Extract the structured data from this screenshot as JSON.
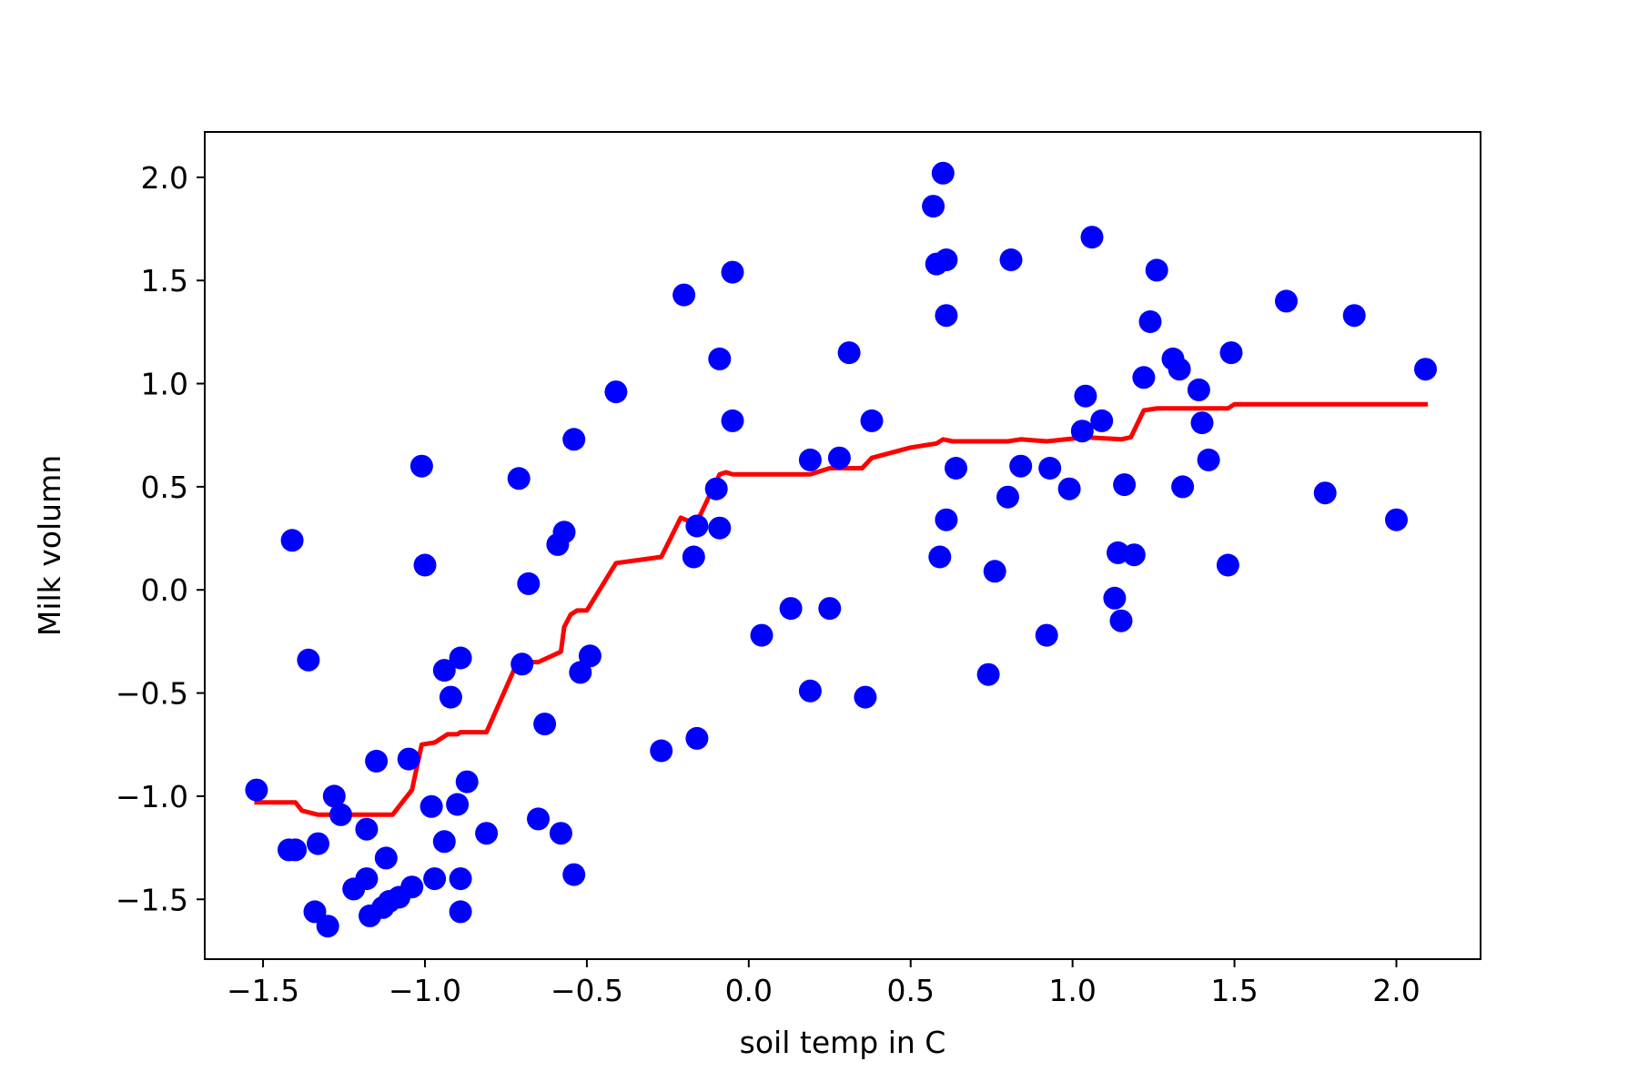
{
  "chart_data": {
    "type": "scatter",
    "title": "",
    "xlabel": "soil temp in C",
    "ylabel": "Milk volumn",
    "xlim": [
      -1.68,
      2.26
    ],
    "ylim": [
      -1.79,
      2.22
    ],
    "grid": false,
    "x_ticks": [
      {
        "value": -1.5,
        "label": "−1.5"
      },
      {
        "value": -1.0,
        "label": "−1.0"
      },
      {
        "value": -0.5,
        "label": "−0.5"
      },
      {
        "value": 0.0,
        "label": "0.0"
      },
      {
        "value": 0.5,
        "label": "0.5"
      },
      {
        "value": 1.0,
        "label": "1.0"
      },
      {
        "value": 1.5,
        "label": "1.5"
      },
      {
        "value": 2.0,
        "label": "2.0"
      }
    ],
    "y_ticks": [
      {
        "value": -1.5,
        "label": "−1.5"
      },
      {
        "value": -1.0,
        "label": "−1.0"
      },
      {
        "value": -0.5,
        "label": "−0.5"
      },
      {
        "value": 0.0,
        "label": "0.0"
      },
      {
        "value": 0.5,
        "label": "0.5"
      },
      {
        "value": 1.0,
        "label": "1.0"
      },
      {
        "value": 1.5,
        "label": "1.5"
      },
      {
        "value": 2.0,
        "label": "2.0"
      }
    ],
    "scatter_color": "#0000ff",
    "line_color": "#ff0000",
    "scatter": {
      "points": [
        [
          -1.52,
          -0.97
        ],
        [
          -1.42,
          -1.26
        ],
        [
          -1.41,
          0.24
        ],
        [
          -1.4,
          -1.26
        ],
        [
          -1.36,
          -0.34
        ],
        [
          -1.34,
          -1.56
        ],
        [
          -1.33,
          -1.23
        ],
        [
          -1.3,
          -1.63
        ],
        [
          -1.28,
          -1.0
        ],
        [
          -1.26,
          -1.09
        ],
        [
          -1.22,
          -1.45
        ],
        [
          -1.18,
          -1.4
        ],
        [
          -1.18,
          -1.16
        ],
        [
          -1.17,
          -1.58
        ],
        [
          -1.15,
          -0.83
        ],
        [
          -1.13,
          -1.54
        ],
        [
          -1.12,
          -1.3
        ],
        [
          -1.11,
          -1.51
        ],
        [
          -1.08,
          -1.49
        ],
        [
          -1.05,
          -0.82
        ],
        [
          -1.04,
          -1.44
        ],
        [
          -1.01,
          0.6
        ],
        [
          -1.0,
          0.12
        ],
        [
          -0.98,
          -1.05
        ],
        [
          -0.97,
          -1.4
        ],
        [
          -0.94,
          -1.22
        ],
        [
          -0.94,
          -0.39
        ],
        [
          -0.92,
          -0.52
        ],
        [
          -0.9,
          -1.04
        ],
        [
          -0.89,
          -1.4
        ],
        [
          -0.89,
          -0.33
        ],
        [
          -0.89,
          -1.56
        ],
        [
          -0.87,
          -0.93
        ],
        [
          -0.81,
          -1.18
        ],
        [
          -0.71,
          0.54
        ],
        [
          -0.7,
          -0.36
        ],
        [
          -0.68,
          0.03
        ],
        [
          -0.65,
          -1.11
        ],
        [
          -0.63,
          -0.65
        ],
        [
          -0.59,
          0.22
        ],
        [
          -0.58,
          -1.18
        ],
        [
          -0.57,
          0.28
        ],
        [
          -0.54,
          -1.38
        ],
        [
          -0.54,
          0.73
        ],
        [
          -0.52,
          -0.4
        ],
        [
          -0.49,
          -0.32
        ],
        [
          -0.41,
          0.96
        ],
        [
          -0.27,
          -0.78
        ],
        [
          -0.2,
          1.43
        ],
        [
          -0.17,
          0.16
        ],
        [
          -0.16,
          -0.72
        ],
        [
          -0.16,
          0.31
        ],
        [
          -0.1,
          0.49
        ],
        [
          -0.09,
          0.3
        ],
        [
          -0.09,
          1.12
        ],
        [
          -0.05,
          0.82
        ],
        [
          -0.05,
          1.54
        ],
        [
          0.04,
          -0.22
        ],
        [
          0.13,
          -0.09
        ],
        [
          0.19,
          0.63
        ],
        [
          0.19,
          -0.49
        ],
        [
          0.25,
          -0.09
        ],
        [
          0.28,
          0.64
        ],
        [
          0.31,
          1.15
        ],
        [
          0.36,
          -0.52
        ],
        [
          0.38,
          0.82
        ],
        [
          0.57,
          1.86
        ],
        [
          0.58,
          1.58
        ],
        [
          0.59,
          0.16
        ],
        [
          0.6,
          2.02
        ],
        [
          0.61,
          1.6
        ],
        [
          0.61,
          1.33
        ],
        [
          0.61,
          0.34
        ],
        [
          0.64,
          0.59
        ],
        [
          0.74,
          -0.41
        ],
        [
          0.76,
          0.09
        ],
        [
          0.8,
          0.45
        ],
        [
          0.81,
          1.6
        ],
        [
          0.84,
          0.6
        ],
        [
          0.92,
          -0.22
        ],
        [
          0.93,
          0.59
        ],
        [
          0.99,
          0.49
        ],
        [
          1.03,
          0.77
        ],
        [
          1.04,
          0.94
        ],
        [
          1.06,
          1.71
        ],
        [
          1.09,
          0.82
        ],
        [
          1.13,
          -0.04
        ],
        [
          1.14,
          0.18
        ],
        [
          1.15,
          -0.15
        ],
        [
          1.16,
          0.51
        ],
        [
          1.19,
          0.17
        ],
        [
          1.22,
          1.03
        ],
        [
          1.24,
          1.3
        ],
        [
          1.26,
          1.55
        ],
        [
          1.31,
          1.12
        ],
        [
          1.33,
          1.07
        ],
        [
          1.34,
          0.5
        ],
        [
          1.39,
          0.97
        ],
        [
          1.4,
          0.81
        ],
        [
          1.42,
          0.63
        ],
        [
          1.48,
          0.12
        ],
        [
          1.49,
          1.15
        ],
        [
          1.66,
          1.4
        ],
        [
          1.78,
          0.47
        ],
        [
          1.87,
          1.33
        ],
        [
          2.0,
          0.34
        ],
        [
          2.09,
          1.07
        ]
      ]
    },
    "line": {
      "points": [
        [
          -1.52,
          -1.03
        ],
        [
          -1.4,
          -1.03
        ],
        [
          -1.38,
          -1.07
        ],
        [
          -1.33,
          -1.09
        ],
        [
          -1.1,
          -1.09
        ],
        [
          -1.04,
          -0.97
        ],
        [
          -1.01,
          -0.75
        ],
        [
          -0.97,
          -0.74
        ],
        [
          -0.93,
          -0.7
        ],
        [
          -0.9,
          -0.7
        ],
        [
          -0.89,
          -0.69
        ],
        [
          -0.81,
          -0.69
        ],
        [
          -0.72,
          -0.37
        ],
        [
          -0.69,
          -0.35
        ],
        [
          -0.65,
          -0.35
        ],
        [
          -0.58,
          -0.3
        ],
        [
          -0.57,
          -0.18
        ],
        [
          -0.55,
          -0.12
        ],
        [
          -0.53,
          -0.1
        ],
        [
          -0.5,
          -0.1
        ],
        [
          -0.41,
          0.13
        ],
        [
          -0.27,
          0.16
        ],
        [
          -0.21,
          0.35
        ],
        [
          -0.18,
          0.33
        ],
        [
          -0.16,
          0.33
        ],
        [
          -0.09,
          0.56
        ],
        [
          -0.07,
          0.57
        ],
        [
          -0.05,
          0.56
        ],
        [
          0.03,
          0.56
        ],
        [
          0.19,
          0.56
        ],
        [
          0.25,
          0.59
        ],
        [
          0.35,
          0.59
        ],
        [
          0.38,
          0.64
        ],
        [
          0.5,
          0.69
        ],
        [
          0.58,
          0.71
        ],
        [
          0.6,
          0.73
        ],
        [
          0.63,
          0.72
        ],
        [
          0.8,
          0.72
        ],
        [
          0.84,
          0.73
        ],
        [
          0.92,
          0.72
        ],
        [
          1.04,
          0.74
        ],
        [
          1.15,
          0.73
        ],
        [
          1.18,
          0.74
        ],
        [
          1.22,
          0.87
        ],
        [
          1.26,
          0.88
        ],
        [
          1.34,
          0.88
        ],
        [
          1.48,
          0.88
        ],
        [
          1.5,
          0.9
        ],
        [
          1.66,
          0.9
        ],
        [
          2.09,
          0.9
        ]
      ]
    }
  }
}
